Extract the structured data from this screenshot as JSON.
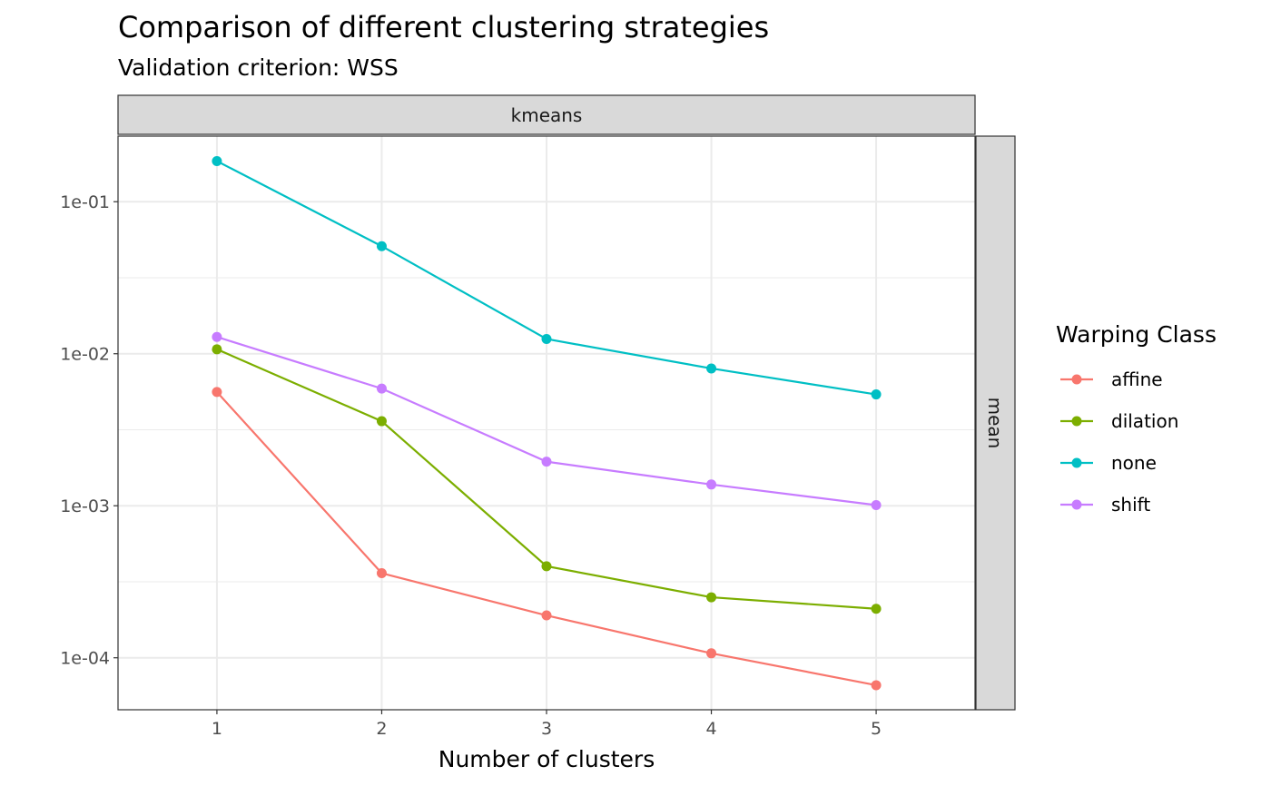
{
  "chart_data": {
    "type": "line",
    "title": "Comparison of different clustering strategies",
    "subtitle": "Validation criterion: WSS",
    "xlabel": "Number of clusters",
    "ylabel": "",
    "x": [
      1,
      2,
      3,
      4,
      5
    ],
    "x_ticks": [
      "1",
      "2",
      "3",
      "4",
      "5"
    ],
    "y_scale": "log10",
    "ylim": [
      4.55e-05,
      0.27
    ],
    "y_ticks": [
      0.0001,
      0.001,
      0.01,
      0.1
    ],
    "y_tick_labels": [
      "1e-04",
      "1e-03",
      "1e-02",
      "1e-01"
    ],
    "grid": true,
    "facet_top": "kmeans",
    "facet_right": "mean",
    "legend": {
      "title": "Warping Class",
      "position": "right"
    },
    "series": [
      {
        "name": "affine",
        "color": "#F8766D",
        "values": [
          0.0056,
          0.00036,
          0.00019,
          0.000107,
          6.6e-05
        ]
      },
      {
        "name": "dilation",
        "color": "#7CAE00",
        "values": [
          0.0107,
          0.0036,
          0.0004,
          0.00025,
          0.00021
        ]
      },
      {
        "name": "none",
        "color": "#00BFC4",
        "values": [
          0.185,
          0.051,
          0.0125,
          0.008,
          0.0054
        ]
      },
      {
        "name": "shift",
        "color": "#C77CFF",
        "values": [
          0.0129,
          0.0059,
          0.00195,
          0.00138,
          0.00101
        ]
      }
    ]
  }
}
